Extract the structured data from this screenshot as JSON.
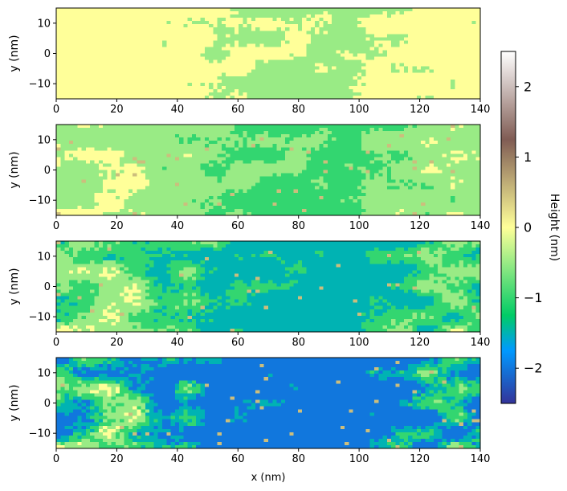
{
  "chart_data": [
    {
      "type": "heatmap",
      "panel": 1,
      "xlabel": "",
      "ylabel": "y (nm)",
      "xlim": [
        0,
        140
      ],
      "ylim": [
        -15,
        15
      ],
      "x_ticks": [
        "0",
        "20",
        "40",
        "60",
        "80",
        "100",
        "120",
        "140"
      ],
      "y_ticks": [
        "10",
        "0",
        "−10"
      ],
      "dominant_levels": [
        0,
        -0.5
      ],
      "min_height_nm": -0.5,
      "max_height_nm": 0
    },
    {
      "type": "heatmap",
      "panel": 2,
      "xlabel": "",
      "ylabel": "y (nm)",
      "xlim": [
        0,
        140
      ],
      "ylim": [
        -15,
        15
      ],
      "x_ticks": [
        "0",
        "20",
        "40",
        "60",
        "80",
        "100",
        "120",
        "140"
      ],
      "y_ticks": [
        "10",
        "0",
        "−10"
      ],
      "dominant_levels": [
        0,
        -0.5,
        -1
      ],
      "min_height_nm": -1,
      "max_height_nm": 0.5
    },
    {
      "type": "heatmap",
      "panel": 3,
      "xlabel": "",
      "ylabel": "y (nm)",
      "xlim": [
        0,
        140
      ],
      "ylim": [
        -15,
        15
      ],
      "x_ticks": [
        "0",
        "20",
        "40",
        "60",
        "80",
        "100",
        "120",
        "140"
      ],
      "y_ticks": [
        "10",
        "0",
        "−10"
      ],
      "dominant_levels": [
        0,
        -0.5,
        -1,
        -1.5
      ],
      "min_height_nm": -1.5,
      "max_height_nm": 0.5
    },
    {
      "type": "heatmap",
      "panel": 4,
      "xlabel": "x (nm)",
      "ylabel": "y (nm)",
      "xlim": [
        0,
        140
      ],
      "ylim": [
        -15,
        15
      ],
      "x_ticks": [
        "0",
        "20",
        "40",
        "60",
        "80",
        "100",
        "120",
        "140"
      ],
      "y_ticks": [
        "10",
        "0",
        "−10"
      ],
      "dominant_levels": [
        0,
        -0.5,
        -1,
        -1.5,
        -2
      ],
      "min_height_nm": -2,
      "max_height_nm": 0.5
    }
  ],
  "colorbar": {
    "label": "Height (nm)",
    "colormap": "terrain",
    "range": [
      -2.5,
      2.5
    ],
    "ticks": [
      "2",
      "1",
      "0",
      "−1",
      "−2"
    ]
  }
}
